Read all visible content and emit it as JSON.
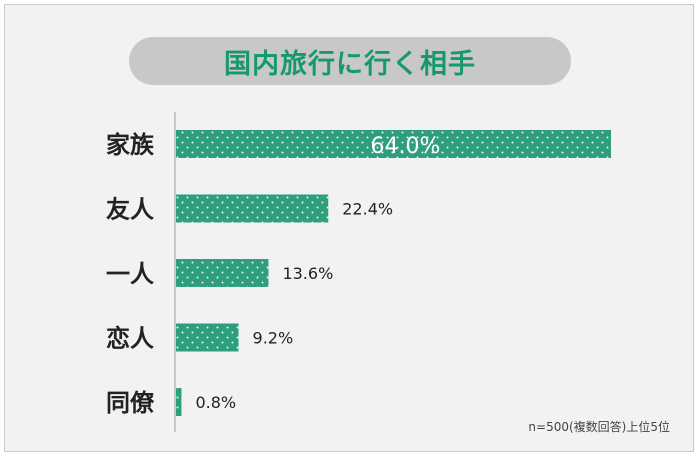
{
  "colors": {
    "bar": "#2f9e7c",
    "dot": "#e9f5f0",
    "title": "#179a6b",
    "pill": "#c8c8c8",
    "axis": "#bbbbbb",
    "label": "#222222",
    "value": "#222222",
    "inner_value": "#ffffff"
  },
  "note": "n=500(複数回答)上位5位",
  "chart_data": {
    "type": "bar",
    "orientation": "horizontal",
    "title": "国内旅行に行く相手",
    "xlabel": "",
    "ylabel": "",
    "categories": [
      "家族",
      "友人",
      "一人",
      "恋人",
      "同僚"
    ],
    "values": [
      64.0,
      22.4,
      13.6,
      9.2,
      0.8
    ],
    "value_labels": [
      "64.0%",
      "22.4%",
      "13.6%",
      "9.2%",
      "0.8%"
    ],
    "unit": "%",
    "xlim": [
      0,
      64.0
    ],
    "grid": false,
    "legend": "none"
  }
}
